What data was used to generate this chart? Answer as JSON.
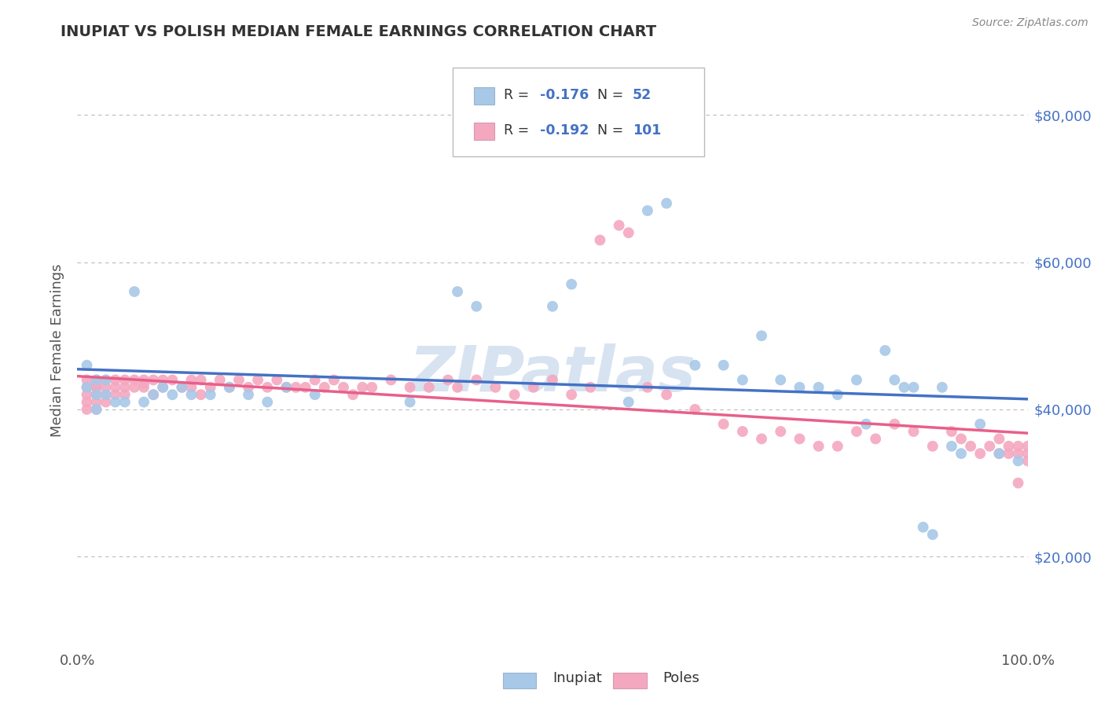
{
  "title": "INUPIAT VS POLISH MEDIAN FEMALE EARNINGS CORRELATION CHART",
  "source": "Source: ZipAtlas.com",
  "ylabel": "Median Female Earnings",
  "xlim": [
    0,
    1
  ],
  "ylim": [
    8000,
    88000
  ],
  "ytick_values": [
    20000,
    40000,
    60000,
    80000
  ],
  "ytick_labels": [
    "$20,000",
    "$40,000",
    "$60,000",
    "$80,000"
  ],
  "inupiat_color": "#a8c8e8",
  "poles_color": "#f4a8c0",
  "inupiat_line_color": "#4472c4",
  "poles_line_color": "#e8608a",
  "legend_r1": "R = ",
  "legend_rv1": "-0.176",
  "legend_n1": "  N = ",
  "legend_nv1": " 52",
  "legend_r2": "R = ",
  "legend_rv2": "-0.192",
  "legend_n2": "  N = ",
  "legend_nv2": "101",
  "watermark": "ZIPatlas",
  "watermark_color": "#c8d8ec",
  "grid_color": "#bbbbbb",
  "title_color": "#333333",
  "source_color": "#888888",
  "text_color": "#333333",
  "blue_color": "#4472c4",
  "bottom_legend_inupiat": "Inupiat",
  "bottom_legend_poles": "Poles"
}
